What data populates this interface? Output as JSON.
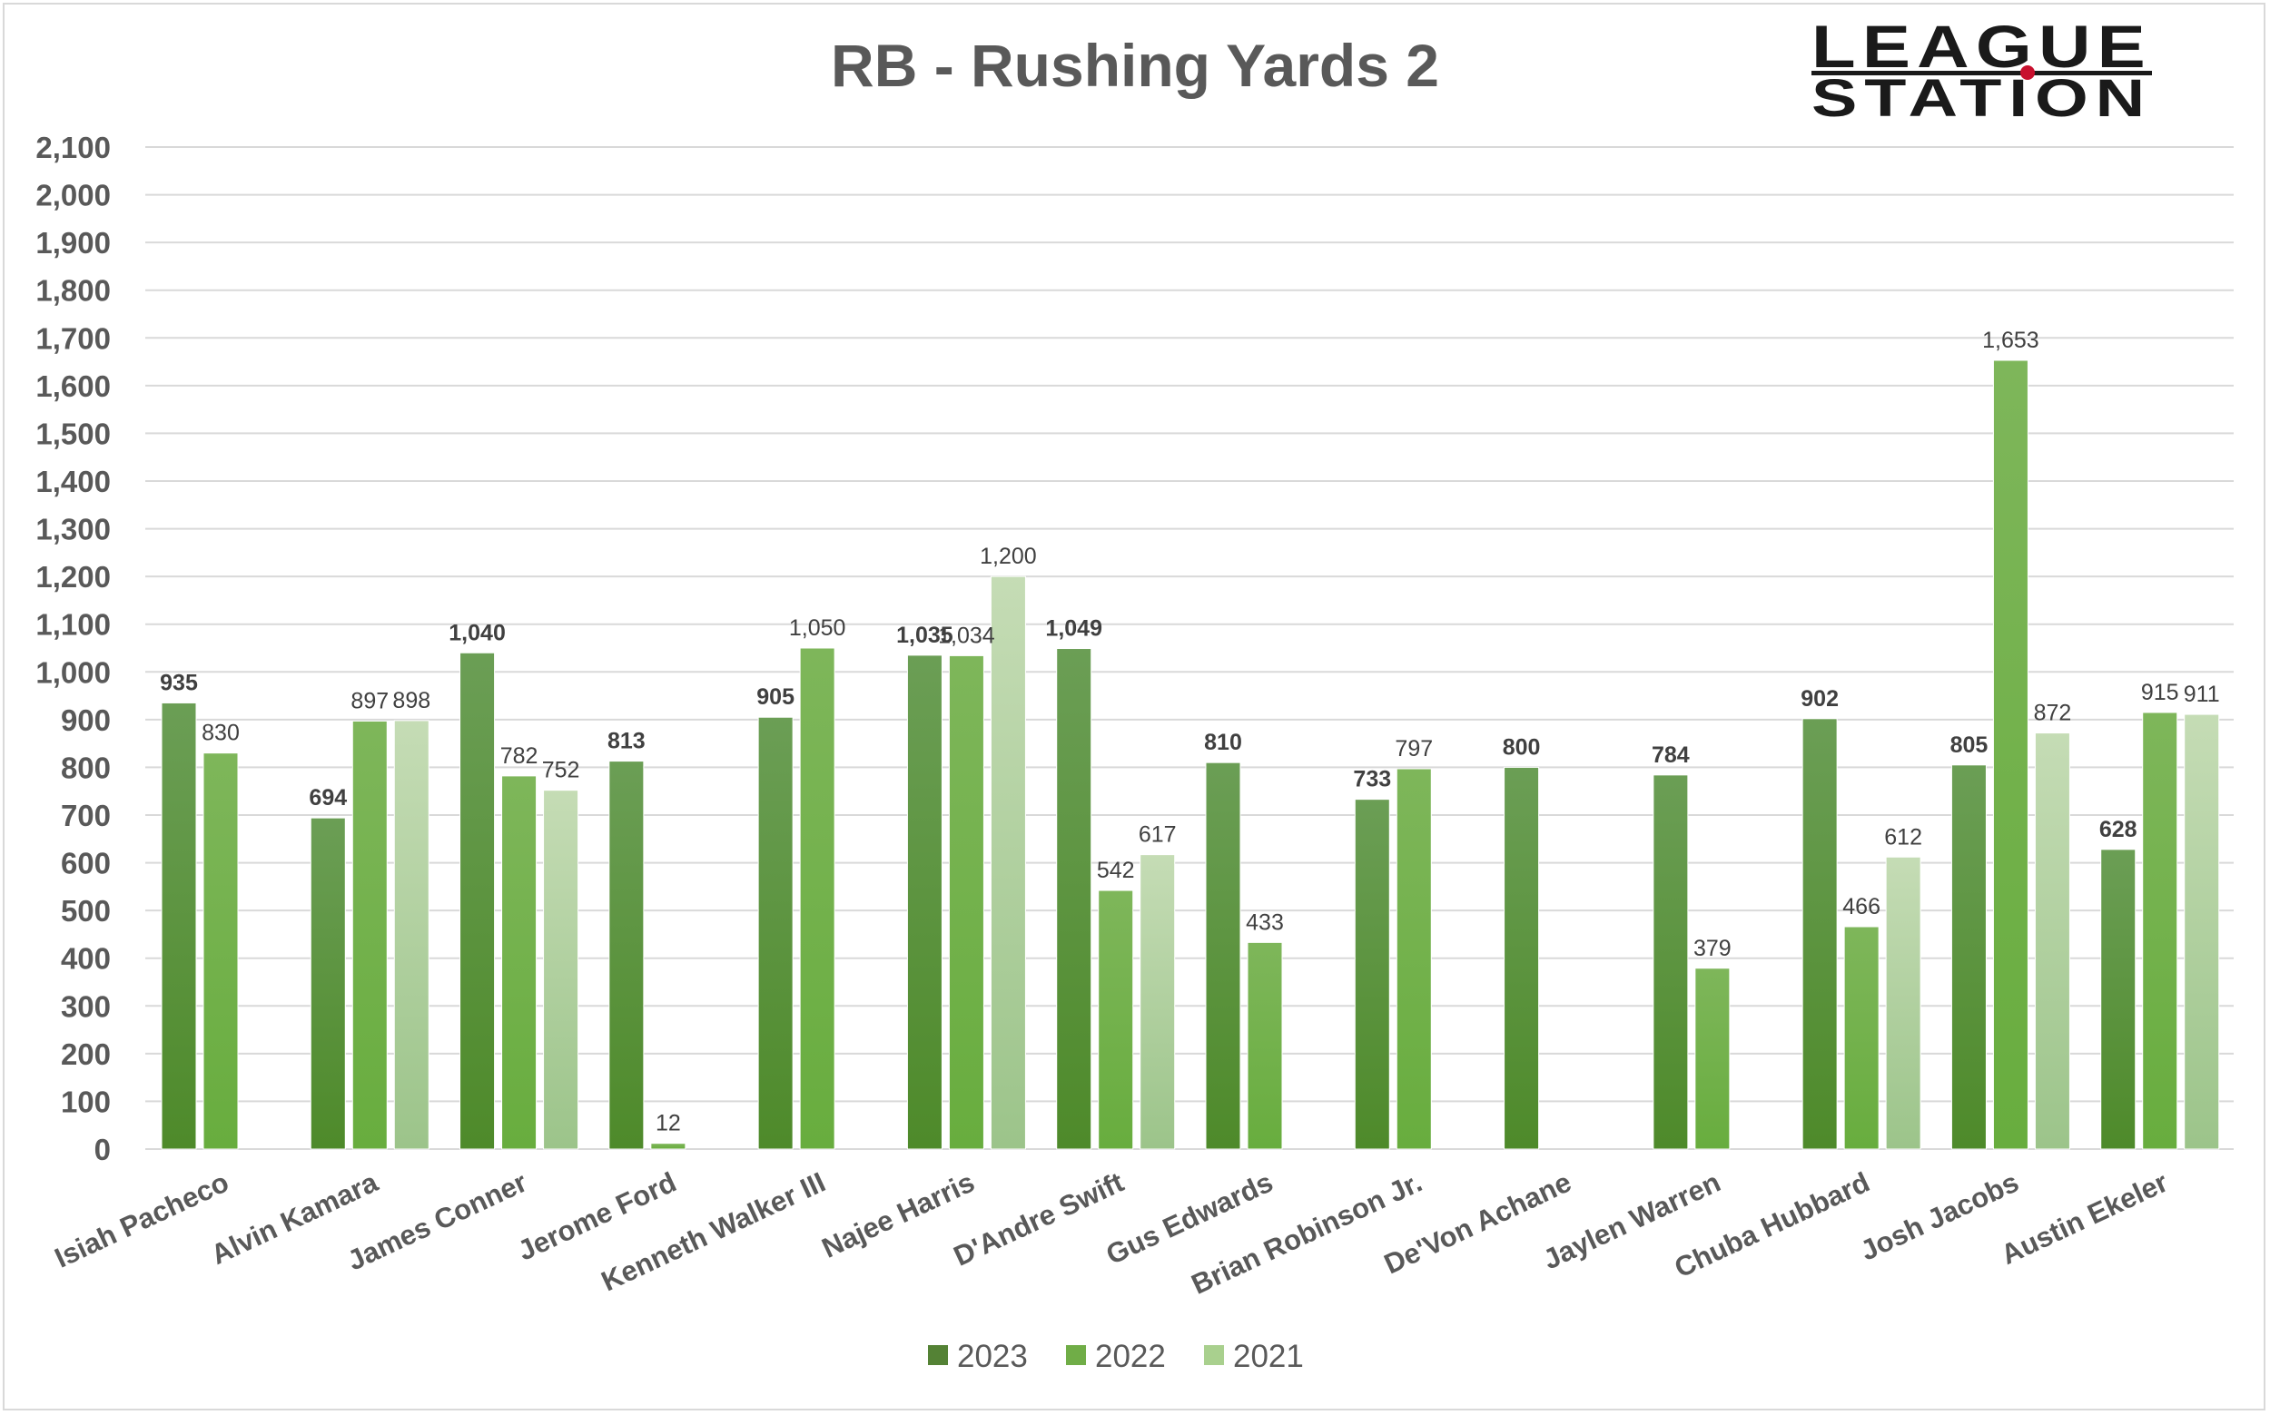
{
  "logo": {
    "line1": "LEAGUE",
    "line2": "STATION",
    "accent": "#c8102e"
  },
  "chart_data": {
    "type": "bar",
    "title": "RB - Rushing Yards 2",
    "xlabel": "",
    "ylabel": "",
    "ylim": [
      0,
      2100
    ],
    "ytick_step": 100,
    "grid": true,
    "legend_position": "bottom",
    "categories": [
      "Isiah Pacheco",
      "Alvin Kamara",
      "James Conner",
      "Jerome Ford",
      "Kenneth Walker III",
      "Najee Harris",
      "D'Andre Swift",
      "Gus Edwards",
      "Brian Robinson Jr.",
      "De'Von Achane",
      "Jaylen Warren",
      "Chuba Hubbard",
      "Josh Jacobs",
      "Austin Ekeler"
    ],
    "series": [
      {
        "name": "2023",
        "color": "#548235",
        "values": [
          935,
          694,
          1040,
          813,
          905,
          1035,
          1049,
          810,
          733,
          800,
          784,
          902,
          805,
          628
        ]
      },
      {
        "name": "2022",
        "color": "#70ad47",
        "values": [
          830,
          897,
          782,
          12,
          1050,
          1034,
          542,
          433,
          797,
          null,
          379,
          466,
          1653,
          915
        ]
      },
      {
        "name": "2021",
        "color": "#a9d08e",
        "values": [
          null,
          898,
          752,
          null,
          null,
          1200,
          617,
          null,
          null,
          null,
          null,
          612,
          872,
          911
        ]
      }
    ]
  }
}
